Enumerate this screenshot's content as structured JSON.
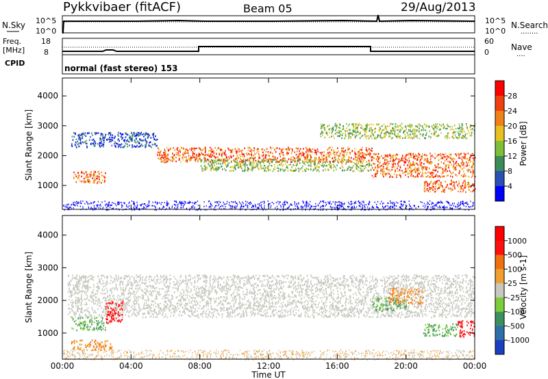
{
  "header": {
    "station": "Pykkvibaer (fitACF)",
    "beam": "Beam 05",
    "date": "29/Aug/2013"
  },
  "top_panel": {
    "left_label": "N.Sky",
    "left_tick_high": "10^5",
    "left_tick_low": "10^0",
    "right_tick_high": "10^5",
    "right_tick_low": "10^0",
    "right_label": "N.Search",
    "right_label_dots": "........"
  },
  "freq_panel": {
    "left_label_1": "Freq.",
    "left_label_2": "[MHz]",
    "cpid_label": "CPID",
    "left_tick_high": "18",
    "left_tick_low": "8",
    "right_tick_high": "60",
    "right_tick_low": "0",
    "right_label": "Nave",
    "right_label_dots": "....",
    "cpid_text": "normal (fast stereo) 153"
  },
  "chart_data": [
    {
      "type": "heatmap",
      "title": "Power",
      "ylabel": "Slant Range [km]",
      "ylim": [
        200,
        4600
      ],
      "yticks": [
        1000,
        2000,
        3000,
        4000
      ],
      "xlim": [
        0,
        24
      ],
      "colorbar": {
        "label": "Power [dB]",
        "ticks": [
          "4",
          "8",
          "12",
          "16",
          "20",
          "24",
          "28"
        ],
        "colors": [
          "#0000ff",
          "#2a4fb5",
          "#3c8c5a",
          "#7dbf3a",
          "#e8c020",
          "#f08018",
          "#f04010",
          "#ff0000"
        ]
      },
      "bands": [
        {
          "t0": 0.5,
          "t1": 5.5,
          "r0": 2300,
          "r1": 2800,
          "level": "low"
        },
        {
          "t0": 0.6,
          "t1": 2.5,
          "r0": 1100,
          "r1": 1500,
          "level": "high"
        },
        {
          "t0": 5.5,
          "t1": 18,
          "r0": 1800,
          "r1": 2300,
          "level": "high"
        },
        {
          "t0": 8,
          "t1": 18,
          "r0": 1500,
          "r1": 1900,
          "level": "mid"
        },
        {
          "t0": 18,
          "t1": 24,
          "r0": 1300,
          "r1": 2100,
          "level": "high"
        },
        {
          "t0": 21,
          "t1": 24,
          "r0": 800,
          "r1": 1200,
          "level": "high"
        },
        {
          "t0": 15,
          "t1": 24,
          "r0": 2600,
          "r1": 3100,
          "level": "mid"
        }
      ]
    },
    {
      "type": "heatmap",
      "title": "Velocity",
      "ylabel": "Slant Range [km]",
      "xlabel": "Time UT",
      "ylim": [
        200,
        4600
      ],
      "yticks": [
        1000,
        2000,
        3000,
        4000
      ],
      "xlim": [
        0,
        24
      ],
      "xticks": [
        "00:00",
        "04:00",
        "08:00",
        "12:00",
        "16:00",
        "20:00",
        "00:00"
      ],
      "colorbar": {
        "label": "Velocity [m s-1]",
        "ticks": [
          "1000",
          "500",
          "100",
          "25",
          "-25",
          "-100",
          "-500",
          "-1000"
        ],
        "colors": [
          "#1a3fbf",
          "#2f6fa8",
          "#3c9060",
          "#7ccc3c",
          "#c8c8c0",
          "#f0a030",
          "#f07010",
          "#ff1010",
          "#ff0000"
        ]
      },
      "bands": [
        {
          "t0": 0.3,
          "t1": 24,
          "r0": 1500,
          "r1": 2800,
          "level": "grey"
        },
        {
          "t0": 0.5,
          "t1": 2.5,
          "r0": 1100,
          "r1": 1500,
          "level": "green"
        },
        {
          "t0": 0.5,
          "t1": 3,
          "r0": 500,
          "r1": 800,
          "level": "orange"
        },
        {
          "t0": 2.5,
          "t1": 3.5,
          "r0": 1300,
          "r1": 2000,
          "level": "red"
        },
        {
          "t0": 18,
          "t1": 20,
          "r0": 1700,
          "r1": 2100,
          "level": "green"
        },
        {
          "t0": 19,
          "t1": 21,
          "r0": 1900,
          "r1": 2400,
          "level": "orange"
        },
        {
          "t0": 21,
          "t1": 23,
          "r0": 900,
          "r1": 1300,
          "level": "green"
        },
        {
          "t0": 23,
          "t1": 24,
          "r0": 900,
          "r1": 1400,
          "level": "red"
        }
      ]
    }
  ]
}
